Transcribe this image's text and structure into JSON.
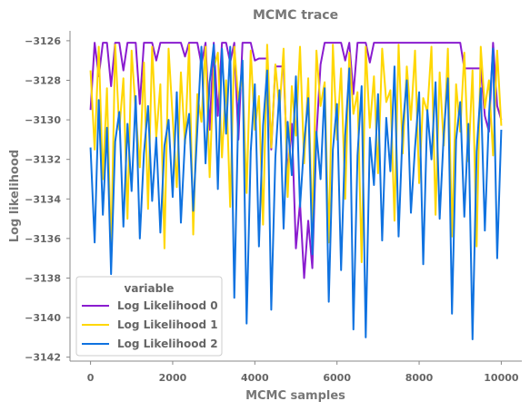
{
  "chart_data": {
    "type": "line",
    "title": "MCMC trace",
    "xlabel": "MCMC samples",
    "ylabel": "Log likelihood",
    "xlim": [
      -500,
      10500
    ],
    "ylim": [
      -3142.2,
      -3125.5
    ],
    "x_ticks": [
      0,
      2000,
      4000,
      6000,
      8000,
      10000
    ],
    "x_tick_labels": [
      "0",
      "2000",
      "4000",
      "6000",
      "8000",
      "10000"
    ],
    "y_ticks": [
      -3142,
      -3140,
      -3138,
      -3136,
      -3134,
      -3132,
      -3130,
      -3128,
      -3126
    ],
    "y_tick_labels": [
      "−3142",
      "−3140",
      "−3138",
      "−3136",
      "−3134",
      "−3132",
      "−3130",
      "−3128",
      "−3126"
    ],
    "grid": false,
    "legend": {
      "title": "variable",
      "placement": "lower-left"
    },
    "series": [
      {
        "name": "Log Likelihood 0",
        "color": "#8a1ccf",
        "x": [
          0,
          100,
          200,
          300,
          400,
          500,
          600,
          700,
          800,
          900,
          1000,
          1100,
          1200,
          1300,
          1400,
          1500,
          1600,
          1700,
          1800,
          1900,
          2000,
          2100,
          2200,
          2300,
          2400,
          2500,
          2600,
          2700,
          2800,
          2900,
          3000,
          3100,
          3200,
          3300,
          3400,
          3500,
          3600,
          3700,
          3800,
          3900,
          4000,
          4100,
          4200,
          4300,
          4400,
          4500,
          4600,
          4700,
          4800,
          4900,
          5000,
          5100,
          5200,
          5300,
          5400,
          5500,
          5600,
          5700,
          5800,
          5900,
          6000,
          6100,
          6200,
          6300,
          6400,
          6500,
          6600,
          6700,
          6800,
          6900,
          7000,
          7100,
          7200,
          7300,
          7400,
          7500,
          7600,
          7700,
          7800,
          7900,
          8000,
          8100,
          8200,
          8300,
          8400,
          8500,
          8600,
          8700,
          8800,
          8900,
          9000,
          9100,
          9200,
          9300,
          9400,
          9500,
          9600,
          9700,
          9800,
          9900,
          10000
        ],
        "y": [
          -3129.5,
          -3126.1,
          -3127.8,
          -3126.1,
          -3126.1,
          -3128.3,
          -3126.1,
          -3126.1,
          -3127.5,
          -3126.1,
          -3126.1,
          -3126.1,
          -3129.2,
          -3126.1,
          -3126.1,
          -3126.1,
          -3127.0,
          -3126.1,
          -3126.1,
          -3126.1,
          -3126.1,
          -3126.1,
          -3126.1,
          -3126.8,
          -3126.1,
          -3126.1,
          -3126.1,
          -3127.2,
          -3126.1,
          -3130.5,
          -3126.1,
          -3129.8,
          -3126.1,
          -3126.1,
          -3127.1,
          -3126.1,
          -3131.0,
          -3126.1,
          -3126.1,
          -3126.1,
          -3127.0,
          -3126.9,
          -3126.9,
          -3126.9,
          -3131.5,
          -3127.3,
          -3127.3,
          -3127.3,
          -3132.8,
          -3130.2,
          -3136.5,
          -3134.2,
          -3138.0,
          -3135.1,
          -3137.5,
          -3130.8,
          -3127.2,
          -3126.1,
          -3126.1,
          -3126.1,
          -3126.1,
          -3126.1,
          -3127.0,
          -3126.1,
          -3128.7,
          -3126.1,
          -3126.1,
          -3126.1,
          -3127.1,
          -3126.1,
          -3126.1,
          -3126.1,
          -3126.1,
          -3126.1,
          -3126.1,
          -3126.1,
          -3126.1,
          -3126.1,
          -3126.1,
          -3126.1,
          -3126.1,
          -3126.1,
          -3126.1,
          -3126.1,
          -3126.1,
          -3126.1,
          -3126.1,
          -3126.1,
          -3126.1,
          -3126.1,
          -3126.1,
          -3127.4,
          -3127.4,
          -3127.4,
          -3127.4,
          -3127.4,
          -3129.8,
          -3130.6,
          -3126.1,
          -3129.3,
          -3130.0
        ]
      },
      {
        "name": "Log Likelihood 1",
        "color": "#ffd700",
        "x": [
          0,
          100,
          200,
          300,
          400,
          500,
          600,
          700,
          800,
          900,
          1000,
          1100,
          1200,
          1300,
          1400,
          1500,
          1600,
          1700,
          1800,
          1900,
          2000,
          2100,
          2200,
          2300,
          2400,
          2500,
          2600,
          2700,
          2800,
          2900,
          3000,
          3100,
          3200,
          3300,
          3400,
          3500,
          3600,
          3700,
          3800,
          3900,
          4000,
          4100,
          4200,
          4300,
          4400,
          4500,
          4600,
          4700,
          4800,
          4900,
          5000,
          5100,
          5200,
          5300,
          5400,
          5500,
          5600,
          5700,
          5800,
          5900,
          6000,
          6100,
          6200,
          6300,
          6400,
          6500,
          6600,
          6700,
          6800,
          6900,
          7000,
          7100,
          7200,
          7300,
          7400,
          7500,
          7600,
          7700,
          7800,
          7900,
          8000,
          8100,
          8200,
          8300,
          8400,
          8500,
          8600,
          8700,
          8800,
          8900,
          9000,
          9100,
          9200,
          9300,
          9400,
          9500,
          9600,
          9700,
          9800,
          9900,
          10000
        ],
        "y": [
          -3127.5,
          -3131.5,
          -3126.3,
          -3133.0,
          -3128.4,
          -3136.8,
          -3126.2,
          -3130.5,
          -3127.9,
          -3135.0,
          -3126.5,
          -3129.6,
          -3132.4,
          -3127.1,
          -3134.5,
          -3126.3,
          -3130.9,
          -3128.2,
          -3136.5,
          -3126.4,
          -3129.9,
          -3133.4,
          -3127.6,
          -3131.2,
          -3126.2,
          -3135.8,
          -3128.7,
          -3130.1,
          -3126.3,
          -3132.9,
          -3127.4,
          -3126.6,
          -3131.9,
          -3128.0,
          -3134.4,
          -3126.3,
          -3129.0,
          -3127.7,
          -3133.7,
          -3126.5,
          -3130.5,
          -3128.8,
          -3135.3,
          -3126.2,
          -3131.4,
          -3127.2,
          -3129.5,
          -3126.4,
          -3133.9,
          -3128.3,
          -3130.8,
          -3126.3,
          -3132.2,
          -3127.9,
          -3135.6,
          -3126.5,
          -3129.3,
          -3128.1,
          -3136.2,
          -3126.2,
          -3131.0,
          -3127.4,
          -3134.0,
          -3126.6,
          -3129.7,
          -3128.6,
          -3137.2,
          -3126.3,
          -3130.4,
          -3127.8,
          -3132.7,
          -3126.4,
          -3129.1,
          -3128.5,
          -3135.1,
          -3126.2,
          -3131.7,
          -3127.3,
          -3130.0,
          -3126.5,
          -3133.2,
          -3128.9,
          -3129.6,
          -3126.3,
          -3134.8,
          -3127.6,
          -3131.3,
          -3126.4,
          -3135.9,
          -3128.2,
          -3130.6,
          -3126.6,
          -3132.1,
          -3127.5,
          -3136.4,
          -3126.3,
          -3129.4,
          -3128.0,
          -3131.8,
          -3126.5,
          -3130.3
        ]
      },
      {
        "name": "Log Likelihood 2",
        "color": "#0f72e0",
        "x": [
          0,
          100,
          200,
          300,
          400,
          500,
          600,
          700,
          800,
          900,
          1000,
          1100,
          1200,
          1300,
          1400,
          1500,
          1600,
          1700,
          1800,
          1900,
          2000,
          2100,
          2200,
          2300,
          2400,
          2500,
          2600,
          2700,
          2800,
          2900,
          3000,
          3100,
          3200,
          3300,
          3400,
          3500,
          3600,
          3700,
          3800,
          3900,
          4000,
          4100,
          4200,
          4300,
          4400,
          4500,
          4600,
          4700,
          4800,
          4900,
          5000,
          5100,
          5200,
          5300,
          5400,
          5500,
          5600,
          5700,
          5800,
          5900,
          6000,
          6100,
          6200,
          6300,
          6400,
          6500,
          6600,
          6700,
          6800,
          6900,
          7000,
          7100,
          7200,
          7300,
          7400,
          7500,
          7600,
          7700,
          7800,
          7900,
          8000,
          8100,
          8200,
          8300,
          8400,
          8500,
          8600,
          8700,
          8800,
          8900,
          9000,
          9100,
          9200,
          9300,
          9400,
          9500,
          9600,
          9700,
          9800,
          9900,
          10000
        ],
        "y": [
          -3131.4,
          -3136.2,
          -3129.0,
          -3134.8,
          -3130.4,
          -3137.8,
          -3131.1,
          -3129.6,
          -3135.4,
          -3130.2,
          -3133.6,
          -3128.8,
          -3136.0,
          -3131.7,
          -3129.3,
          -3134.1,
          -3130.9,
          -3135.7,
          -3131.3,
          -3130.0,
          -3133.9,
          -3128.6,
          -3135.2,
          -3131.0,
          -3129.7,
          -3134.6,
          -3130.5,
          -3126.3,
          -3132.2,
          -3128.1,
          -3126.2,
          -3133.5,
          -3126.4,
          -3130.7,
          -3126.3,
          -3139.0,
          -3129.4,
          -3127.0,
          -3140.3,
          -3131.6,
          -3128.2,
          -3136.4,
          -3130.3,
          -3127.5,
          -3139.6,
          -3131.9,
          -3128.5,
          -3135.5,
          -3130.1,
          -3132.8,
          -3127.8,
          -3134.4,
          -3131.2,
          -3128.9,
          -3136.8,
          -3130.6,
          -3133.0,
          -3128.4,
          -3139.2,
          -3131.5,
          -3129.2,
          -3137.6,
          -3130.8,
          -3127.4,
          -3140.6,
          -3131.8,
          -3128.3,
          -3141.0,
          -3130.9,
          -3133.3,
          -3128.7,
          -3136.1,
          -3129.9,
          -3132.6,
          -3127.3,
          -3135.9,
          -3130.4,
          -3128.0,
          -3134.7,
          -3131.4,
          -3128.6,
          -3137.3,
          -3129.5,
          -3132.0,
          -3128.1,
          -3135.0,
          -3130.7,
          -3127.9,
          -3139.8,
          -3131.0,
          -3129.1,
          -3134.9,
          -3130.2,
          -3141.1,
          -3131.6,
          -3128.4,
          -3135.6,
          -3129.8,
          -3126.4,
          -3137.0,
          -3130.5
        ]
      }
    ]
  }
}
